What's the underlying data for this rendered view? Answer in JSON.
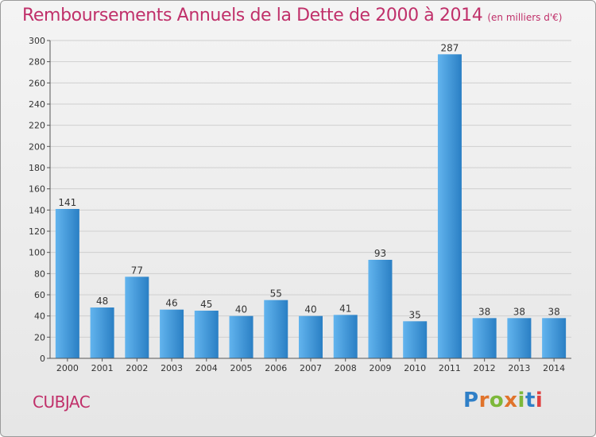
{
  "title": "Remboursements Annuels de la Dette de 2000 à 2014",
  "unit": "(en milliers d'€)",
  "commune": "CUBJAC",
  "brand": "Proxiti",
  "colors": {
    "title": "#c0306a",
    "bar_light": "#62b4ee",
    "bar_dark": "#2a7fc4",
    "grid": "#cfcfcf",
    "axis": "#555555"
  },
  "chart_data": {
    "type": "bar",
    "categories": [
      "2000",
      "2001",
      "2002",
      "2003",
      "2004",
      "2005",
      "2006",
      "2007",
      "2008",
      "2009",
      "2010",
      "2011",
      "2012",
      "2013",
      "2014"
    ],
    "values": [
      141,
      48,
      77,
      46,
      45,
      40,
      55,
      40,
      41,
      93,
      35,
      287,
      38,
      38,
      38
    ],
    "ylim": [
      0,
      300
    ],
    "yticks": [
      0,
      20,
      40,
      60,
      80,
      100,
      120,
      140,
      160,
      180,
      200,
      220,
      240,
      260,
      280,
      300
    ],
    "grid": true,
    "data_labels": true
  }
}
